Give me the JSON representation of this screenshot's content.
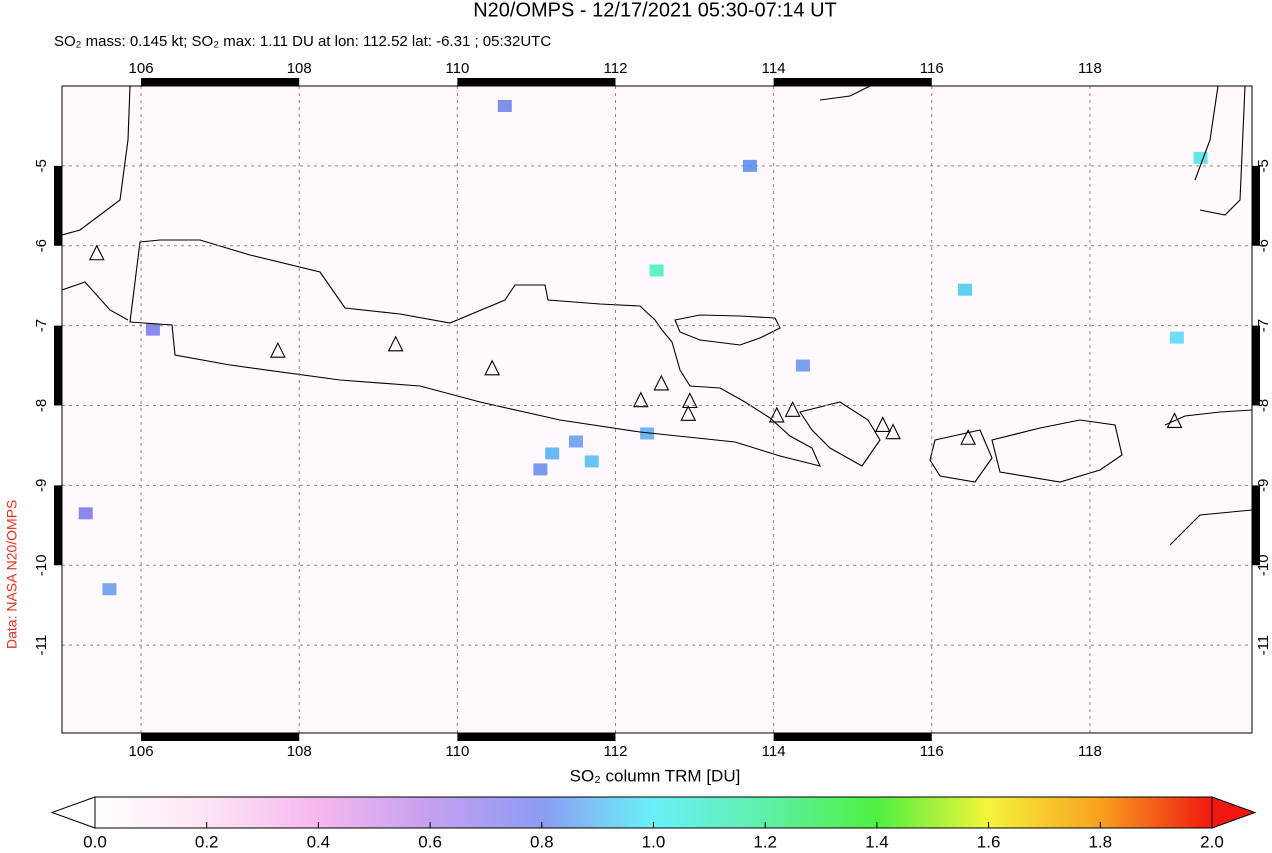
{
  "chart_data": {
    "type": "map",
    "title": "N20/OMPS - 12/17/2021 05:30-07:14 UT",
    "subtitle": "SO₂ mass: 0.145 kt; SO₂ max: 1.11 DU at lon: 112.52 lat: -6.31 ; 05:32UTC",
    "credit": "Data: NASA N20/OMPS",
    "xlim": [
      105,
      120.05
    ],
    "ylim": [
      -12.1,
      -4.0
    ],
    "xticks": [
      106,
      108,
      110,
      112,
      114,
      116,
      118
    ],
    "yticks": [
      -5,
      -6,
      -7,
      -8,
      -9,
      -10,
      -11
    ],
    "grid": true,
    "volcanoes": {
      "x": [
        105.44,
        107.73,
        109.22,
        110.44,
        112.32,
        112.58,
        112.94,
        112.92,
        114.04,
        114.24,
        115.38,
        115.51,
        116.46,
        119.07
      ],
      "y": [
        -6.1,
        -7.32,
        -7.24,
        -7.54,
        -7.94,
        -7.73,
        -7.95,
        -8.11,
        -8.13,
        -8.06,
        -8.25,
        -8.34,
        -8.41,
        -8.2
      ]
    },
    "pixels": {
      "x": [
        112.52,
        111.2,
        111.5,
        111.7,
        112.4,
        113.7,
        114.37,
        116.42,
        119.1,
        119.4,
        105.3,
        105.6,
        106.15,
        110.6,
        111.05
      ],
      "y": [
        -6.31,
        -8.6,
        -8.45,
        -8.7,
        -8.35,
        -5.0,
        -7.5,
        -6.55,
        -7.15,
        -4.9,
        -9.35,
        -10.3,
        -7.05,
        -4.25,
        -8.8
      ],
      "values": [
        1.11,
        0.9,
        0.85,
        0.95,
        0.9,
        0.8,
        0.8,
        0.95,
        1.0,
        1.05,
        0.7,
        0.85,
        0.7,
        0.75,
        0.8
      ],
      "colors": [
        "#5ef0c8",
        "#6ab8f5",
        "#7aa8f0",
        "#66c8f2",
        "#70b4f2",
        "#6d9af0",
        "#7aa0ee",
        "#5ed0f0",
        "#70dcf8",
        "#66e6e8",
        "#8a88ea",
        "#7aa8ee",
        "#8a8aec",
        "#7f90ea",
        "#7a9aee"
      ]
    },
    "colorbar": {
      "label": "SO₂ column TRM [DU]",
      "lim": [
        0,
        2
      ],
      "ticks": [
        {
          "value": 0,
          "label": "0.0"
        },
        {
          "value": 0.2,
          "label": "0.2"
        },
        {
          "value": 0.4,
          "label": "0.4"
        },
        {
          "value": 0.6,
          "label": "0.6"
        },
        {
          "value": 0.8,
          "label": "0.8"
        },
        {
          "value": 1.0,
          "label": "1.0"
        },
        {
          "value": 1.2,
          "label": "1.2"
        },
        {
          "value": 1.4,
          "label": "1.4"
        },
        {
          "value": 1.6,
          "label": "1.6"
        },
        {
          "value": 1.8,
          "label": "1.8"
        },
        {
          "value": 2.0,
          "label": "2.0"
        }
      ]
    }
  }
}
